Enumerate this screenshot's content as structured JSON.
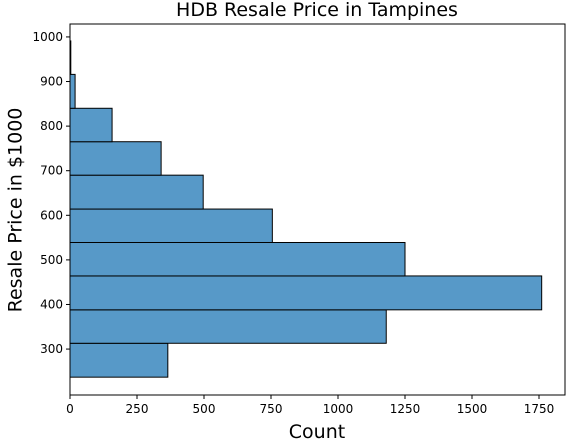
{
  "chart_data": {
    "type": "histogram",
    "orientation": "horizontal",
    "title": "HDB Resale Price in Tampines",
    "xlabel": "Count",
    "ylabel": "Resale Price in $1000",
    "bins": [
      237,
      313,
      388,
      464,
      539,
      614,
      690,
      765,
      840,
      916,
      991
    ],
    "values": [
      365,
      1180,
      1760,
      1250,
      755,
      497,
      340,
      157,
      19,
      3
    ],
    "color": "#5799c8",
    "xlim": [
      0,
      1847
    ],
    "xticks": [
      0,
      250,
      500,
      750,
      1000,
      1250,
      1500,
      1750
    ],
    "ylim": [
      197,
      1029
    ],
    "yticks": [
      300,
      400,
      500,
      600,
      700,
      800,
      900,
      1000
    ]
  }
}
